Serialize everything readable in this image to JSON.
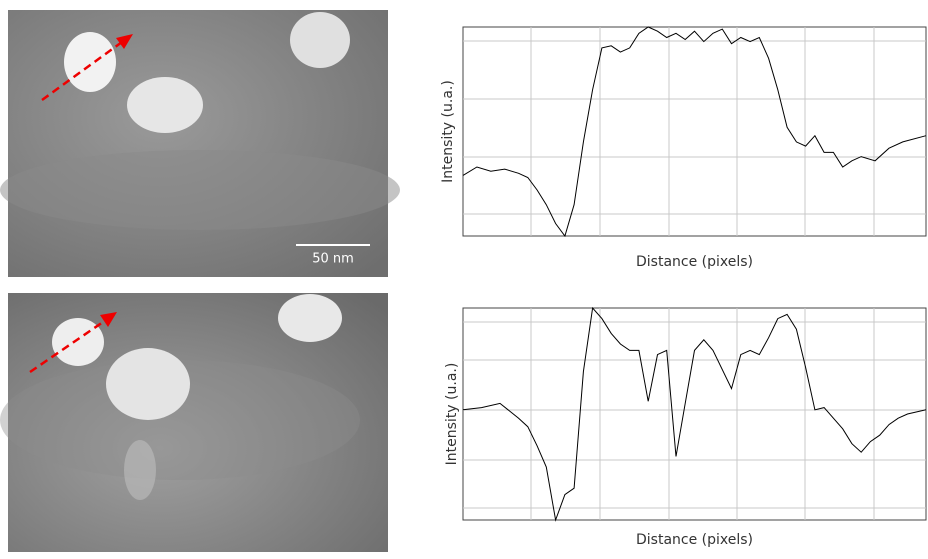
{
  "scale_bar": "50 nm",
  "chart_data": [
    {
      "type": "line",
      "xlabel": "Distance (pixels)",
      "ylabel": "Intensity (u.a.)",
      "color": "#000000",
      "xlim": [
        0,
        100
      ],
      "ylim": [
        0,
        1
      ],
      "x": [
        0,
        3,
        6,
        9,
        12,
        14,
        16,
        18,
        20,
        22,
        24,
        26,
        28,
        30,
        32,
        34,
        36,
        38,
        40,
        42,
        44,
        46,
        48,
        50,
        52,
        54,
        56,
        58,
        60,
        62,
        64,
        66,
        68,
        70,
        72,
        74,
        76,
        78,
        80,
        82,
        84,
        86,
        89,
        92,
        95,
        100
      ],
      "values": [
        0.29,
        0.33,
        0.31,
        0.32,
        0.3,
        0.28,
        0.22,
        0.15,
        0.06,
        0.0,
        0.15,
        0.45,
        0.7,
        0.9,
        0.91,
        0.88,
        0.9,
        0.97,
        1.0,
        0.98,
        0.95,
        0.97,
        0.94,
        0.98,
        0.93,
        0.97,
        0.99,
        0.92,
        0.95,
        0.93,
        0.95,
        0.85,
        0.7,
        0.52,
        0.45,
        0.43,
        0.48,
        0.4,
        0.4,
        0.33,
        0.36,
        0.38,
        0.36,
        0.42,
        0.45,
        0.48
      ]
    },
    {
      "type": "line",
      "xlabel": "Distance (pixels)",
      "ylabel": "Intensity (u.a.)",
      "color": "#000000",
      "xlim": [
        0,
        100
      ],
      "ylim": [
        0,
        1
      ],
      "x": [
        0,
        4,
        8,
        12,
        14,
        16,
        18,
        20,
        22,
        24,
        26,
        28,
        30,
        32,
        34,
        36,
        38,
        40,
        42,
        44,
        46,
        48,
        50,
        52,
        54,
        58,
        60,
        62,
        64,
        66,
        68,
        70,
        72,
        74,
        76,
        78,
        80,
        82,
        84,
        86,
        88,
        90,
        92,
        94,
        96,
        100
      ],
      "values": [
        0.52,
        0.53,
        0.55,
        0.48,
        0.44,
        0.35,
        0.25,
        0.0,
        0.12,
        0.15,
        0.7,
        1.0,
        0.95,
        0.88,
        0.83,
        0.8,
        0.8,
        0.56,
        0.78,
        0.8,
        0.3,
        0.55,
        0.8,
        0.85,
        0.8,
        0.62,
        0.78,
        0.8,
        0.78,
        0.86,
        0.95,
        0.97,
        0.9,
        0.72,
        0.52,
        0.53,
        0.48,
        0.43,
        0.36,
        0.32,
        0.37,
        0.4,
        0.45,
        0.48,
        0.5,
        0.52
      ]
    }
  ]
}
